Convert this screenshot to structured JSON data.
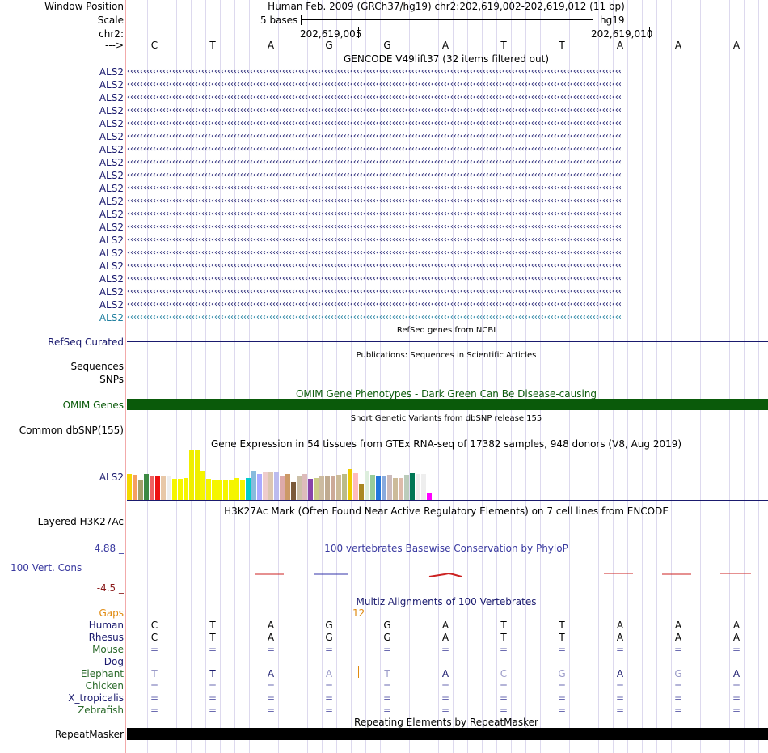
{
  "header": {
    "labels": {
      "window_position": "Window Position",
      "scale": "Scale",
      "chrom": "chr2:",
      "strand": "--->"
    },
    "assembly_text": "Human Feb. 2009 (GRCh37/hg19)   chr2:202,619,002-202,619,012 (11 bp)",
    "scale_text": "5 bases",
    "db_text": "hg19",
    "pos_left": "202,619,005",
    "pos_right": "202,619,010"
  },
  "sequence": [
    "C",
    "T",
    "A",
    "G",
    "G",
    "A",
    "T",
    "T",
    "A",
    "A",
    "A"
  ],
  "gencode": {
    "title": "GENCODE V49lift37 (32 items filtered out)",
    "rows": [
      "ALS2",
      "ALS2",
      "ALS2",
      "ALS2",
      "ALS2",
      "ALS2",
      "ALS2",
      "ALS2",
      "ALS2",
      "ALS2",
      "ALS2",
      "ALS2",
      "ALS2",
      "ALS2",
      "ALS2",
      "ALS2",
      "ALS2",
      "ALS2",
      "ALS2",
      "ALS2"
    ],
    "arrows": "‹‹‹‹‹‹‹‹‹‹‹‹‹‹‹‹‹‹‹‹‹‹‹‹‹‹‹‹‹‹‹‹‹‹‹‹‹‹‹‹‹‹‹‹‹‹‹‹‹‹‹‹‹‹‹‹‹‹‹‹‹‹‹‹‹‹‹‹‹‹‹‹‹‹‹‹‹‹‹‹‹‹‹‹‹‹‹‹‹‹‹‹‹‹‹‹‹‹‹‹‹‹‹‹‹‹‹‹‹‹‹‹‹‹‹‹‹‹‹‹‹‹‹‹‹‹‹‹‹‹‹‹‹‹‹‹‹‹‹‹‹‹‹‹‹‹‹‹‹‹‹‹‹",
    "colors": {
      "main": "#1a1a6e",
      "last": "#1f7f9f"
    }
  },
  "refseq": {
    "title": "RefSeq genes from NCBI",
    "label": "RefSeq Curated"
  },
  "publications": {
    "title": "Publications: Sequences in Scientific Articles",
    "label_sequences": "Sequences",
    "label_snps": "SNPs"
  },
  "omim": {
    "title": "OMIM Gene Phenotypes - Dark Green Can Be Disease-causing",
    "label": "OMIM Genes",
    "color": "#0a5a0a"
  },
  "dbsnp": {
    "title": "Short Genetic Variants from dbSNP release 155",
    "label": "Common dbSNP(155)"
  },
  "gtex": {
    "title": "Gene Expression in 54 tissues from GTEx RNA-seq of 17382 samples, 948 donors (V8, Aug 2019)",
    "label": "ALS2",
    "bars": [
      {
        "value": 0.52,
        "color": "#f5d800"
      },
      {
        "value": 0.5,
        "color": "#f5a060"
      },
      {
        "value": 0.4,
        "color": "#a6a06a"
      },
      {
        "value": 0.52,
        "color": "#3d8a44"
      },
      {
        "value": 0.48,
        "color": "#ee6060"
      },
      {
        "value": 0.48,
        "color": "#ee1010"
      },
      {
        "value": 0.48,
        "color": "#e8c8a8"
      },
      {
        "value": 0.46,
        "color": "#eeeeee"
      },
      {
        "value": 0.42,
        "color": "#f5f500"
      },
      {
        "value": 0.42,
        "color": "#f5f500"
      },
      {
        "value": 0.44,
        "color": "#f5f500"
      },
      {
        "value": 1.0,
        "color": "#f0ee00"
      },
      {
        "value": 1.0,
        "color": "#f0ee00"
      },
      {
        "value": 0.58,
        "color": "#f5f500"
      },
      {
        "value": 0.42,
        "color": "#f5f500"
      },
      {
        "value": 0.4,
        "color": "#f5f500"
      },
      {
        "value": 0.4,
        "color": "#f5f500"
      },
      {
        "value": 0.4,
        "color": "#f5f500"
      },
      {
        "value": 0.4,
        "color": "#f5f500"
      },
      {
        "value": 0.44,
        "color": "#f5f500"
      },
      {
        "value": 0.4,
        "color": "#f5f500"
      },
      {
        "value": 0.44,
        "color": "#00cccc"
      },
      {
        "value": 0.58,
        "color": "#88bbdd"
      },
      {
        "value": 0.52,
        "color": "#aaaaff"
      },
      {
        "value": 0.56,
        "color": "#eecccc"
      },
      {
        "value": 0.56,
        "color": "#dcc6b0"
      },
      {
        "value": 0.56,
        "color": "#bbbbee"
      },
      {
        "value": 0.46,
        "color": "#ddaaaa"
      },
      {
        "value": 0.52,
        "color": "#cc9966"
      },
      {
        "value": 0.36,
        "color": "#7a5a3a"
      },
      {
        "value": 0.46,
        "color": "#ccc0a8"
      },
      {
        "value": 0.52,
        "color": "#ddbbbb"
      },
      {
        "value": 0.42,
        "color": "#8844aa"
      },
      {
        "value": 0.44,
        "color": "#cccc88"
      },
      {
        "value": 0.46,
        "color": "#ccbba0"
      },
      {
        "value": 0.46,
        "color": "#c0ab90"
      },
      {
        "value": 0.46,
        "color": "#ccaa99"
      },
      {
        "value": 0.5,
        "color": "#ccbb99"
      },
      {
        "value": 0.52,
        "color": "#bbbb88"
      },
      {
        "value": 0.62,
        "color": "#eecc00"
      },
      {
        "value": 0.54,
        "color": "#ffbbbb"
      },
      {
        "value": 0.3,
        "color": "#aa8822"
      },
      {
        "value": 0.58,
        "color": "#ddeedd"
      },
      {
        "value": 0.5,
        "color": "#99cc99"
      },
      {
        "value": 0.48,
        "color": "#2277dd"
      },
      {
        "value": 0.48,
        "color": "#88aadd"
      },
      {
        "value": 0.5,
        "color": "#ccbbbb"
      },
      {
        "value": 0.44,
        "color": "#ccbb99"
      },
      {
        "value": 0.44,
        "color": "#ddbbaa"
      },
      {
        "value": 0.5,
        "color": "#bbccbb"
      },
      {
        "value": 0.54,
        "color": "#007755"
      },
      {
        "value": 0.52,
        "color": "#eeeeee"
      },
      {
        "value": 0.52,
        "color": "#eeeeee"
      },
      {
        "value": 0.14,
        "color": "#ff00ff"
      }
    ]
  },
  "h3k27ac": {
    "title": "H3K27Ac Mark (Often Found Near Active Regulatory Elements) on 7 cell lines from ENCODE",
    "label": "Layered H3K27Ac"
  },
  "phylop": {
    "title": "100 vertebrates Basewise Conservation by PhyloP",
    "label": "100 Vert. Cons",
    "max": "4.88 _",
    "min": "-4.5 _"
  },
  "multiz": {
    "title": "Multiz Alignments of 100 Vertebrates",
    "gaps_label": "Gaps",
    "gap_value": "12",
    "species": [
      {
        "name": "Human",
        "bases": [
          "C",
          "T",
          "A",
          "G",
          "G",
          "A",
          "T",
          "T",
          "A",
          "A",
          "A"
        ],
        "color": "#1a1a6e"
      },
      {
        "name": "Rhesus",
        "bases": [
          "C",
          "T",
          "A",
          "G",
          "G",
          "A",
          "T",
          "T",
          "A",
          "A",
          "A"
        ],
        "color": "#1a1a6e"
      },
      {
        "name": "Mouse",
        "bases": [
          "=",
          "=",
          "=",
          "=",
          "=",
          "=",
          "=",
          "=",
          "=",
          "=",
          "="
        ],
        "color": "#2a6a2a"
      },
      {
        "name": "Dog",
        "bases": [
          "-",
          "-",
          "-",
          "-",
          "-",
          "-",
          "-",
          "-",
          "-",
          "-",
          "-"
        ],
        "color": "#1a1a6e"
      },
      {
        "name": "Elephant",
        "bases": [
          "T",
          "T",
          "A",
          "A",
          "T",
          "A",
          "C",
          "G",
          "A",
          "G",
          "A"
        ],
        "color": "#2a6a2a"
      },
      {
        "name": "Chicken",
        "bases": [
          "=",
          "=",
          "=",
          "=",
          "=",
          "=",
          "=",
          "=",
          "=",
          "=",
          "="
        ],
        "color": "#2a6a2a"
      },
      {
        "name": "X_tropicalis",
        "bases": [
          "=",
          "=",
          "=",
          "=",
          "=",
          "=",
          "=",
          "=",
          "=",
          "=",
          "="
        ],
        "color": "#1a1a6e"
      },
      {
        "name": "Zebrafish",
        "bases": [
          "=",
          "=",
          "=",
          "=",
          "=",
          "=",
          "=",
          "=",
          "=",
          "=",
          "="
        ],
        "color": "#2a6a2a"
      }
    ]
  },
  "repeatmasker": {
    "title": "Repeating Elements by RepeatMasker",
    "label": "RepeatMasker"
  }
}
